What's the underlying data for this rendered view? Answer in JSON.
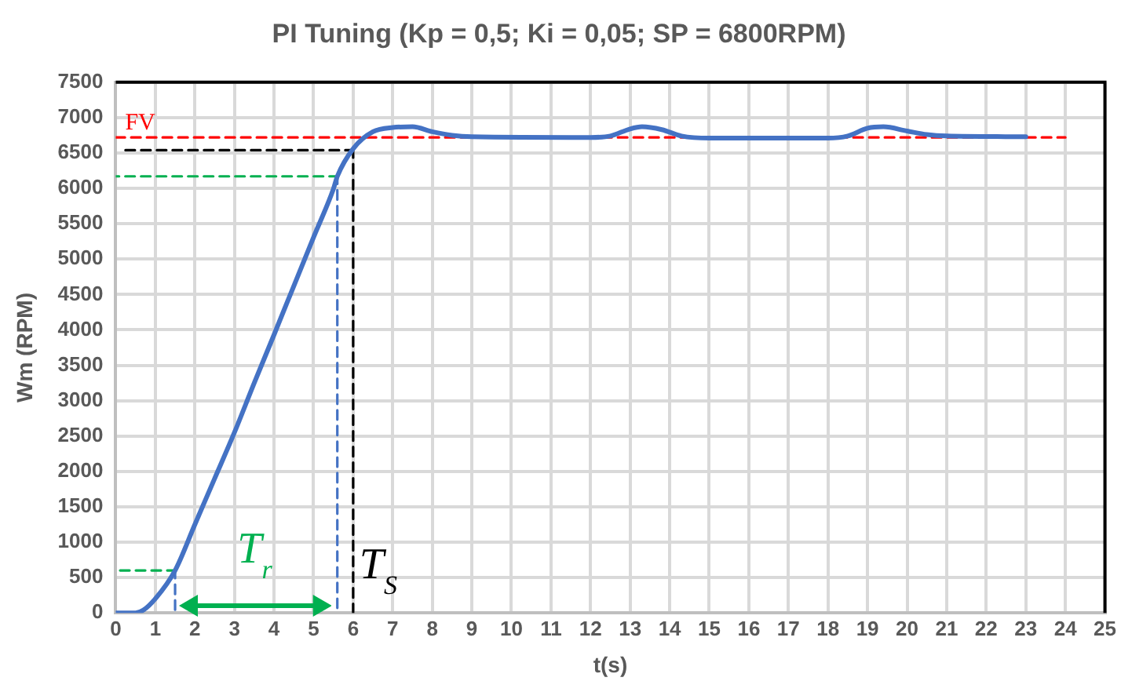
{
  "chart_data": {
    "type": "line",
    "title": "PI Tuning (Kp = 0,5; Ki = 0,05; SP = 6800RPM)",
    "xlabel": "t(s)",
    "ylabel": "Wm (RPM)",
    "xlim": [
      0,
      25
    ],
    "xticks": [
      0,
      1,
      2,
      3,
      4,
      5,
      6,
      7,
      8,
      9,
      10,
      11,
      12,
      13,
      14,
      15,
      16,
      17,
      18,
      19,
      20,
      21,
      22,
      23,
      24,
      25
    ],
    "ylim": [
      0,
      7500
    ],
    "yticks": [
      0,
      500,
      1000,
      1500,
      2000,
      2500,
      3000,
      3500,
      4000,
      4500,
      5000,
      5500,
      6000,
      6500,
      7000,
      7500
    ],
    "grid": true,
    "legend": false,
    "marker": "none",
    "series": [
      {
        "color": "#4472c4",
        "line_style": "solid",
        "x": [
          0,
          0.5,
          0.7,
          1,
          1.5,
          2,
          2.5,
          3,
          3.5,
          4,
          4.5,
          5,
          5.5,
          5.6,
          6,
          6.5,
          7,
          7.5,
          8,
          8.5,
          9,
          12,
          12.5,
          13,
          13.3,
          13.8,
          14.3,
          15,
          18,
          18.5,
          19,
          19.4,
          20,
          20.5,
          21,
          23
        ],
        "values": [
          0,
          0,
          40,
          200,
          600,
          1250,
          1900,
          2550,
          3250,
          3930,
          4620,
          5310,
          5990,
          6170,
          6560,
          6800,
          6860,
          6870,
          6800,
          6750,
          6730,
          6720,
          6740,
          6840,
          6870,
          6830,
          6740,
          6710,
          6710,
          6740,
          6850,
          6870,
          6810,
          6760,
          6740,
          6730
        ]
      },
      {
        "name": "FV",
        "color": "#ff0000",
        "line_style": "dashed",
        "x": [
          0,
          24
        ],
        "values": [
          6720,
          6720
        ]
      },
      {
        "color": "#000000",
        "line_style": "dashed",
        "x": [
          0.2,
          6
        ],
        "values": [
          6540,
          6540
        ]
      },
      {
        "color": "#00b050",
        "line_style": "dashed",
        "x": [
          0,
          5.6
        ],
        "values": [
          6170,
          6170
        ]
      },
      {
        "color": "#00b050",
        "line_style": "dashed",
        "x": [
          0,
          1.5
        ],
        "values": [
          600,
          600
        ]
      },
      {
        "color": "#4472c4",
        "line_style": "dashed",
        "x": [
          1.5,
          1.5
        ],
        "values": [
          0,
          600
        ]
      },
      {
        "color": "#4472c4",
        "line_style": "dashed",
        "x": [
          5.6,
          5.6
        ],
        "values": [
          0,
          6170
        ]
      },
      {
        "color": "#000000",
        "line_style": "dashed",
        "x": [
          6,
          6
        ],
        "values": [
          0,
          6540
        ]
      }
    ],
    "annotations": [
      "T$_{r}$",
      "T$_{S}$"
    ]
  }
}
